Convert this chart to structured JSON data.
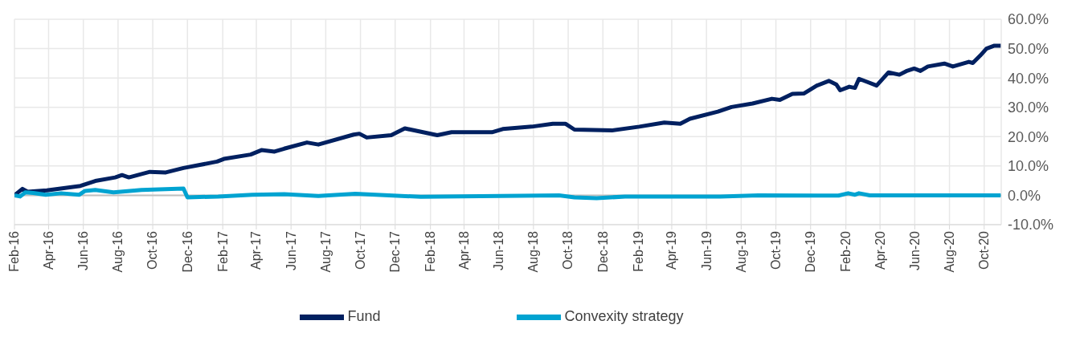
{
  "chart_data": {
    "type": "line",
    "legend": "bottom",
    "grid": true,
    "xlim": [
      "2016-02-01",
      "2020-10-31"
    ],
    "xticks": [
      {
        "value": "2016-02",
        "label": "Feb-16"
      },
      {
        "value": "2016-04",
        "label": "Apr-16"
      },
      {
        "value": "2016-06",
        "label": "Jun-16"
      },
      {
        "value": "2016-08",
        "label": "Aug-16"
      },
      {
        "value": "2016-10",
        "label": "Oct-16"
      },
      {
        "value": "2016-12",
        "label": "Dec-16"
      },
      {
        "value": "2017-02",
        "label": "Feb-17"
      },
      {
        "value": "2017-04",
        "label": "Apr-17"
      },
      {
        "value": "2017-06",
        "label": "Jun-17"
      },
      {
        "value": "2017-08",
        "label": "Aug-17"
      },
      {
        "value": "2017-10",
        "label": "Oct-17"
      },
      {
        "value": "2017-12",
        "label": "Dec-17"
      },
      {
        "value": "2018-02",
        "label": "Feb-18"
      },
      {
        "value": "2018-04",
        "label": "Apr-18"
      },
      {
        "value": "2018-06",
        "label": "Jun-18"
      },
      {
        "value": "2018-08",
        "label": "Aug-18"
      },
      {
        "value": "2018-10",
        "label": "Oct-18"
      },
      {
        "value": "2018-12",
        "label": "Dec-18"
      },
      {
        "value": "2019-02",
        "label": "Feb-19"
      },
      {
        "value": "2019-04",
        "label": "Apr-19"
      },
      {
        "value": "2019-06",
        "label": "Jun-19"
      },
      {
        "value": "2019-08",
        "label": "Aug-19"
      },
      {
        "value": "2019-10",
        "label": "Oct-19"
      },
      {
        "value": "2019-12",
        "label": "Dec-19"
      },
      {
        "value": "2020-02",
        "label": "Feb-20"
      },
      {
        "value": "2020-04",
        "label": "Apr-20"
      },
      {
        "value": "2020-06",
        "label": "Jun-20"
      },
      {
        "value": "2020-08",
        "label": "Aug-20"
      },
      {
        "value": "2020-10",
        "label": "Oct-20"
      }
    ],
    "ylim": [
      -10,
      60
    ],
    "yticks": [
      {
        "value": -10,
        "label": "-10.0%"
      },
      {
        "value": 0,
        "label": "0.0%"
      },
      {
        "value": 10,
        "label": "10.0%"
      },
      {
        "value": 20,
        "label": "20.0%"
      },
      {
        "value": 30,
        "label": "30.0%"
      },
      {
        "value": 40,
        "label": "40.0%"
      },
      {
        "value": 50,
        "label": "50.0%"
      },
      {
        "value": 60,
        "label": "60.0%"
      }
    ],
    "ref_lines": [
      {
        "axis": "y",
        "value": 0,
        "color": "#bfbfbf"
      }
    ],
    "series": [
      {
        "name": "Fund",
        "color": "#002060",
        "x": [
          "2016-02-01",
          "2016-02-15",
          "2016-02-24",
          "2016-03-29",
          "2016-05-27",
          "2016-06-22",
          "2016-07-27",
          "2016-08-08",
          "2016-08-20",
          "2016-09-26",
          "2016-10-24",
          "2016-11-24",
          "2017-01-22",
          "2017-02-03",
          "2017-03-22",
          "2017-04-10",
          "2017-05-03",
          "2017-05-20",
          "2017-06-29",
          "2017-07-19",
          "2017-09-19",
          "2017-09-29",
          "2017-10-12",
          "2017-11-24",
          "2017-12-18",
          "2018-02-13",
          "2018-03-10",
          "2018-05-20",
          "2018-06-08",
          "2018-07-29",
          "2018-09-04",
          "2018-09-26",
          "2018-10-12",
          "2018-12-17",
          "2019-02-03",
          "2019-03-19",
          "2019-04-16",
          "2019-05-03",
          "2019-06-21",
          "2019-07-15",
          "2019-08-21",
          "2019-09-24",
          "2019-10-08",
          "2019-10-30",
          "2019-11-19",
          "2019-12-12",
          "2020-01-02",
          "2020-01-15",
          "2020-01-22",
          "2020-02-07",
          "2020-02-17",
          "2020-02-24",
          "2020-03-10",
          "2020-03-26",
          "2020-04-16",
          "2020-05-05",
          "2020-05-17",
          "2020-05-31",
          "2020-06-11",
          "2020-06-24",
          "2020-07-23",
          "2020-08-07",
          "2020-09-04",
          "2020-09-11",
          "2020-09-24",
          "2020-10-05",
          "2020-10-19",
          "2020-10-30"
        ],
        "values": [
          0,
          2.2,
          1.2,
          1.7,
          3.2,
          4.9,
          6.1,
          6.9,
          6.1,
          8.0,
          7.8,
          9.3,
          11.5,
          12.4,
          13.9,
          15.4,
          14.9,
          15.9,
          18.0,
          17.3,
          20.7,
          21.0,
          19.7,
          20.5,
          22.8,
          20.5,
          21.5,
          21.5,
          22.6,
          23.4,
          24.4,
          24.4,
          22.4,
          22.1,
          23.4,
          24.8,
          24.4,
          26.1,
          28.5,
          30.1,
          31.3,
          32.9,
          32.5,
          34.6,
          34.7,
          37.4,
          39.0,
          37.8,
          35.8,
          37.0,
          36.6,
          39.7,
          38.6,
          37.4,
          41.9,
          41.1,
          42.3,
          43.2,
          42.4,
          43.9,
          44.9,
          43.9,
          45.5,
          45.1,
          47.6,
          50.0,
          51.0,
          51.0
        ]
      },
      {
        "name": "Convexity strategy",
        "color": "#00a3d1",
        "x": [
          "2016-02-01",
          "2016-02-11",
          "2016-02-20",
          "2016-03-05",
          "2016-03-27",
          "2016-04-23",
          "2016-05-25",
          "2016-06-04",
          "2016-06-22",
          "2016-07-24",
          "2016-09-11",
          "2016-11-24",
          "2016-12-01",
          "2017-01-24",
          "2017-03-25",
          "2017-05-20",
          "2017-07-19",
          "2017-09-22",
          "2018-01-15",
          "2018-09-15",
          "2018-10-12",
          "2018-11-20",
          "2019-01-09",
          "2019-04-12",
          "2019-06-25",
          "2019-08-31",
          "2020-01-19",
          "2020-02-05",
          "2020-02-17",
          "2020-02-24",
          "2020-03-14",
          "2020-10-30"
        ],
        "values": [
          0,
          -0.4,
          1.0,
          0.8,
          0.2,
          0.7,
          0.2,
          1.5,
          1.8,
          1.0,
          1.8,
          2.3,
          -0.7,
          -0.4,
          0.2,
          0.4,
          -0.2,
          0.5,
          -0.5,
          0,
          -0.7,
          -1.0,
          -0.4,
          -0.4,
          -0.4,
          0,
          -0.1,
          0.7,
          0.2,
          0.7,
          0,
          0
        ]
      }
    ]
  }
}
